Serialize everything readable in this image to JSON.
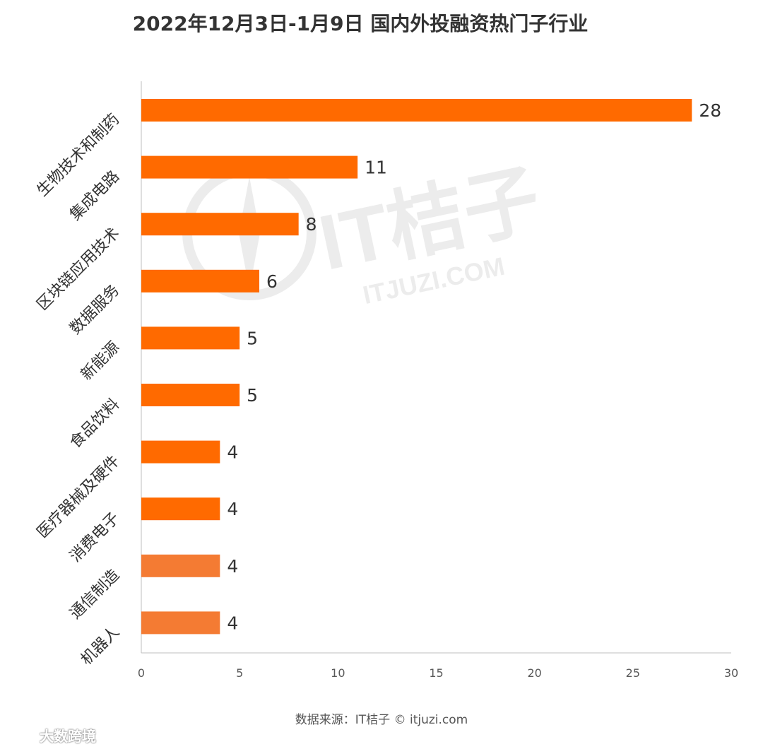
{
  "chart_data": {
    "type": "bar",
    "orientation": "horizontal",
    "title": "2022年12月3日-1月9日 国内外投融资热门子行业",
    "categories": [
      "生物技术和制药",
      "集成电路",
      "区块链应用技术",
      "数据服务",
      "新能源",
      "食品饮料",
      "医疗器械及硬件",
      "消费电子",
      "通信制造",
      "机器人"
    ],
    "values": [
      28,
      11,
      8,
      6,
      5,
      5,
      4,
      4,
      4,
      4
    ],
    "xlim": [
      0,
      30
    ],
    "xticks": [
      0,
      5,
      10,
      15,
      20,
      25,
      30
    ],
    "xlabel": "",
    "ylabel": "",
    "grid": false,
    "legend": "none",
    "bar_color": "#ff6a00",
    "bar_color_light": "#f47b33"
  },
  "source_note": "数据来源：IT桔子 © itjuzi.com",
  "watermark": {
    "text": "IT桔子",
    "subtext": "ITJUZI.COM"
  },
  "corner_brand": {
    "text": "大数跨境",
    "icon": "brand-logo-icon"
  }
}
